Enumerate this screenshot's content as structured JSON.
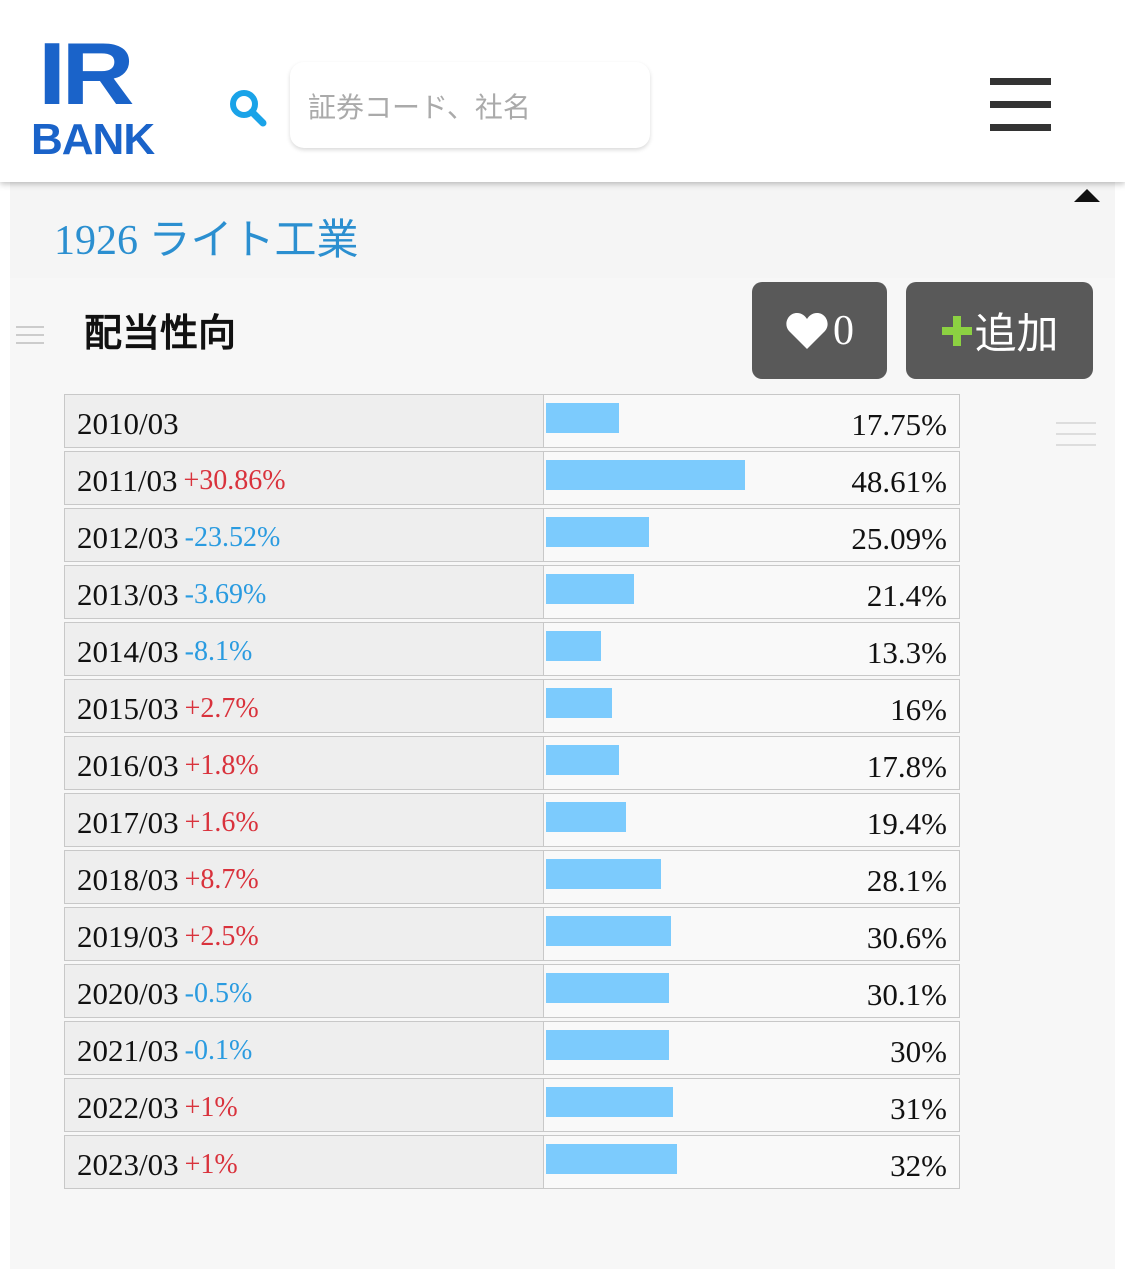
{
  "header": {
    "logo_top": "IR",
    "logo_bottom": "BANK",
    "search_placeholder": "証券コード、社名"
  },
  "company_title": "1926 ライト工業",
  "section_title": "配当性向",
  "like_count": 0,
  "add_button": "追加",
  "table": {
    "bar_scale": [
      0,
      100
    ],
    "bar_color": "#7ccbfd",
    "rows": [
      {
        "period": "2010/03",
        "ratio": 17.75,
        "ratio_label": "17.75%"
      },
      {
        "period": "2011/03",
        "change": "+30.86%",
        "ratio": 48.61,
        "ratio_label": "48.61%"
      },
      {
        "period": "2012/03",
        "change": "-23.52%",
        "ratio": 25.09,
        "ratio_label": "25.09%"
      },
      {
        "period": "2013/03",
        "change": "-3.69%",
        "ratio": 21.4,
        "ratio_label": "21.4%"
      },
      {
        "period": "2014/03",
        "change": "-8.1%",
        "ratio": 13.3,
        "ratio_label": "13.3%"
      },
      {
        "period": "2015/03",
        "change": "+2.7%",
        "ratio": 16,
        "ratio_label": "16%"
      },
      {
        "period": "2016/03",
        "change": "+1.8%",
        "ratio": 17.8,
        "ratio_label": "17.8%"
      },
      {
        "period": "2017/03",
        "change": "+1.6%",
        "ratio": 19.4,
        "ratio_label": "19.4%"
      },
      {
        "period": "2018/03",
        "change": "+8.7%",
        "ratio": 28.1,
        "ratio_label": "28.1%"
      },
      {
        "period": "2019/03",
        "change": "+2.5%",
        "ratio": 30.6,
        "ratio_label": "30.6%"
      },
      {
        "period": "2020/03",
        "change": "-0.5%",
        "ratio": 30.1,
        "ratio_label": "30.1%"
      },
      {
        "period": "2021/03",
        "change": "-0.1%",
        "ratio": 30,
        "ratio_label": "30%"
      },
      {
        "period": "2022/03",
        "change": "+1%",
        "ratio": 31,
        "ratio_label": "31%"
      },
      {
        "period": "2023/03",
        "change": "+1%",
        "ratio": 32,
        "ratio_label": "32%"
      }
    ]
  }
}
